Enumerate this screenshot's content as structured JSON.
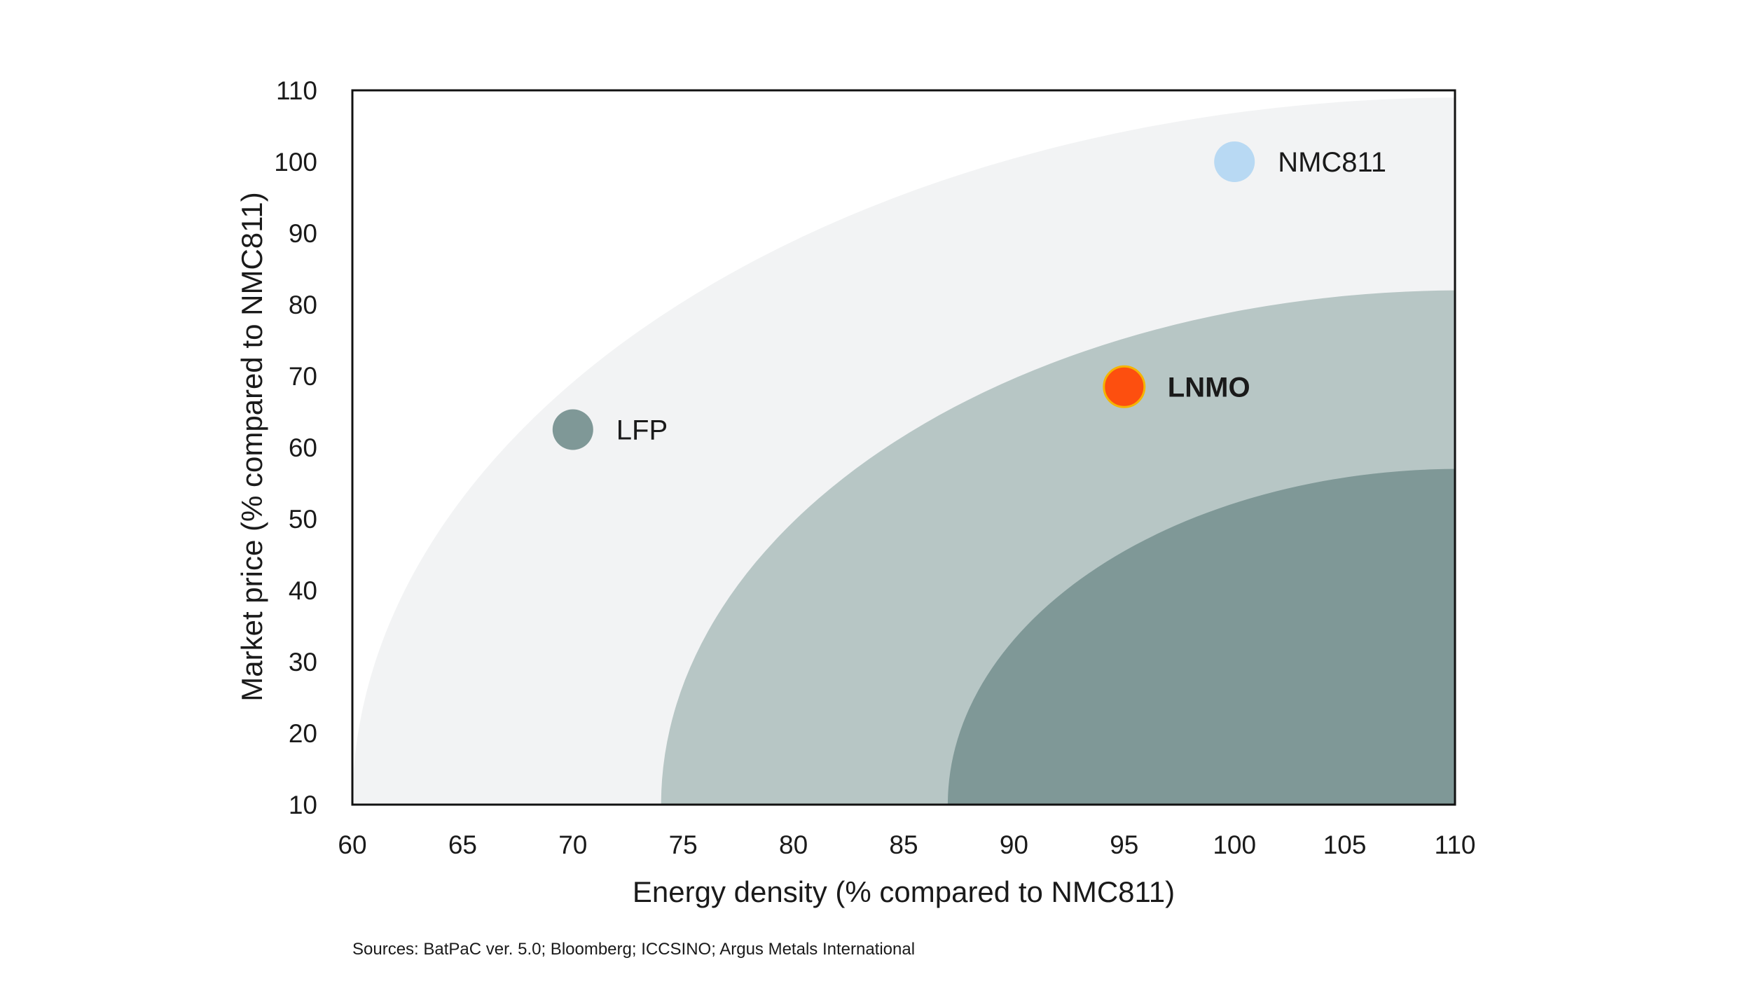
{
  "chart_data": {
    "type": "scatter",
    "title": "",
    "xlabel": "Energy density (% compared to NMC811)",
    "ylabel": "Market price (% compared to NMC811)",
    "xlim": [
      60,
      110
    ],
    "ylim": [
      10,
      110
    ],
    "x_ticks": [
      60,
      65,
      70,
      75,
      80,
      85,
      90,
      95,
      100,
      105,
      110
    ],
    "y_ticks": [
      10,
      20,
      30,
      40,
      50,
      60,
      70,
      80,
      90,
      100,
      110
    ],
    "grid": false,
    "background_zones": [
      {
        "name": "outer zone",
        "x_start": 60,
        "y_top": 109,
        "color": "#f2f3f4"
      },
      {
        "name": "middle zone",
        "x_start": 74,
        "y_top": 82,
        "color": "#b7c6c5"
      },
      {
        "name": "inner zone",
        "x_start": 87,
        "y_top": 57,
        "color": "#7f9897"
      }
    ],
    "points": [
      {
        "label": "NMC811",
        "x": 100,
        "y": 100,
        "color": "#b8d9f3",
        "bold": false
      },
      {
        "label": "LNMO",
        "x": 95,
        "y": 68.5,
        "color": "#fd4f0f",
        "outline": "#f5b400",
        "bold": true
      },
      {
        "label": "LFP",
        "x": 70,
        "y": 62.5,
        "color": "#7f9897",
        "bold": false
      }
    ]
  },
  "source_note": "Sources: BatPaC ver. 5.0; Bloomberg; ICCSINO; Argus Metals International"
}
